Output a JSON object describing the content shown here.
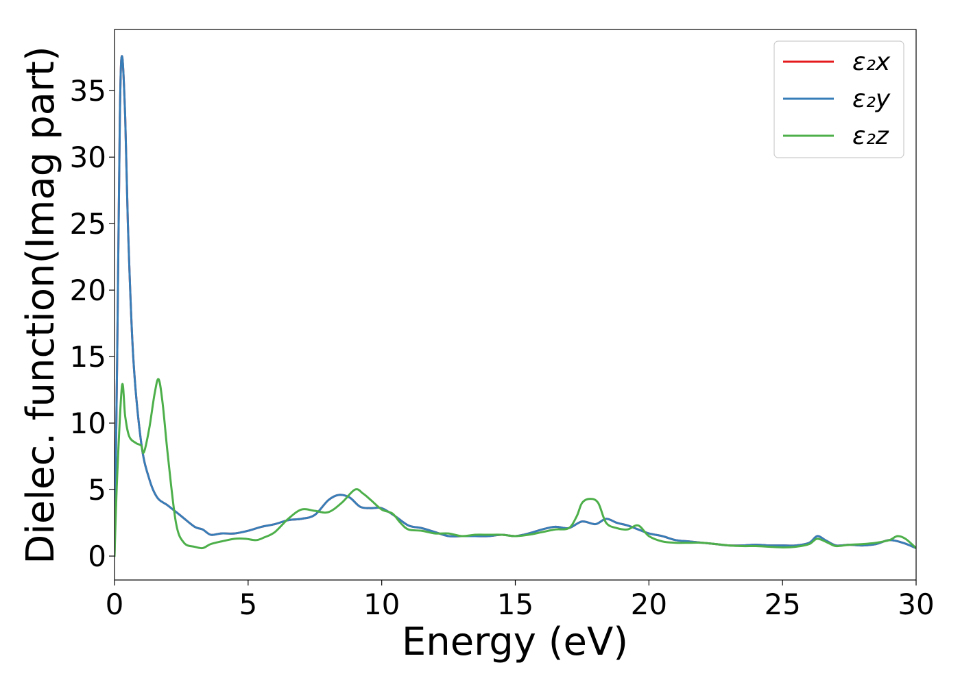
{
  "chart_data": {
    "type": "line",
    "title": "",
    "xlabel": "Energy (eV)",
    "ylabel": "Dielec. function(Imag part)",
    "xlim": [
      0,
      30
    ],
    "ylim": [
      -1.8,
      39.6
    ],
    "xticks": [
      0,
      5,
      10,
      15,
      20,
      25,
      30
    ],
    "xtick_labels": [
      "0",
      "5",
      "10",
      "15",
      "20",
      "25",
      "30"
    ],
    "yticks": [
      0,
      5,
      10,
      15,
      20,
      25,
      30,
      35
    ],
    "ytick_labels": [
      "0",
      "5",
      "10",
      "15",
      "20",
      "25",
      "30",
      "35"
    ],
    "grid": false,
    "legend_position": "top-right",
    "series": [
      {
        "name": "ε₂x",
        "color": "#e41a1c",
        "x": [
          0,
          0.1,
          0.2,
          0.28,
          0.4,
          0.5,
          0.7,
          1.0,
          1.3,
          1.6,
          2.0,
          2.5,
          3.0,
          3.3,
          3.6,
          4.0,
          4.5,
          5.0,
          5.5,
          6.0,
          6.5,
          7.0,
          7.5,
          8.0,
          8.4,
          8.8,
          9.2,
          9.6,
          10.0,
          10.5,
          11.0,
          11.5,
          12.0,
          12.5,
          13.0,
          13.5,
          14.0,
          14.5,
          15.0,
          15.5,
          16.0,
          16.5,
          17.0,
          17.5,
          18.0,
          18.4,
          18.8,
          19.2,
          19.6,
          20.0,
          20.5,
          21.0,
          21.5,
          22.0,
          22.5,
          23.0,
          23.5,
          24.0,
          24.5,
          25.0,
          25.5,
          26.0,
          26.3,
          26.6,
          27.0,
          27.5,
          28.0,
          28.5,
          29.0,
          29.5,
          30.0
        ],
        "values": [
          0,
          15,
          33,
          37.6,
          33,
          25,
          15,
          8.5,
          5.8,
          4.4,
          3.8,
          3.0,
          2.2,
          2.0,
          1.6,
          1.7,
          1.7,
          1.9,
          2.2,
          2.4,
          2.7,
          2.8,
          3.1,
          4.2,
          4.6,
          4.4,
          3.7,
          3.6,
          3.6,
          3.0,
          2.3,
          2.1,
          1.8,
          1.5,
          1.5,
          1.5,
          1.5,
          1.6,
          1.5,
          1.7,
          2.0,
          2.2,
          2.1,
          2.6,
          2.4,
          2.8,
          2.5,
          2.3,
          2.0,
          1.7,
          1.5,
          1.2,
          1.1,
          1.0,
          0.9,
          0.8,
          0.8,
          0.85,
          0.8,
          0.8,
          0.8,
          1.0,
          1.5,
          1.2,
          0.8,
          0.85,
          0.8,
          0.9,
          1.2,
          1.0,
          0.6
        ]
      },
      {
        "name": "ε₂y",
        "color": "#377eb8",
        "x": [
          0,
          0.1,
          0.2,
          0.28,
          0.4,
          0.5,
          0.7,
          1.0,
          1.3,
          1.6,
          2.0,
          2.5,
          3.0,
          3.3,
          3.6,
          4.0,
          4.5,
          5.0,
          5.5,
          6.0,
          6.5,
          7.0,
          7.5,
          8.0,
          8.4,
          8.8,
          9.2,
          9.6,
          10.0,
          10.5,
          11.0,
          11.5,
          12.0,
          12.5,
          13.0,
          13.5,
          14.0,
          14.5,
          15.0,
          15.5,
          16.0,
          16.5,
          17.0,
          17.5,
          18.0,
          18.4,
          18.8,
          19.2,
          19.6,
          20.0,
          20.5,
          21.0,
          21.5,
          22.0,
          22.5,
          23.0,
          23.5,
          24.0,
          24.5,
          25.0,
          25.5,
          26.0,
          26.3,
          26.6,
          27.0,
          27.5,
          28.0,
          28.5,
          29.0,
          29.5,
          30.0
        ],
        "values": [
          0,
          15,
          33,
          37.6,
          33,
          25,
          15,
          8.5,
          5.8,
          4.4,
          3.8,
          3.0,
          2.2,
          2.0,
          1.6,
          1.7,
          1.7,
          1.9,
          2.2,
          2.4,
          2.7,
          2.8,
          3.1,
          4.2,
          4.6,
          4.4,
          3.7,
          3.6,
          3.6,
          3.0,
          2.3,
          2.1,
          1.8,
          1.5,
          1.5,
          1.5,
          1.5,
          1.6,
          1.5,
          1.7,
          2.0,
          2.2,
          2.1,
          2.6,
          2.4,
          2.8,
          2.5,
          2.3,
          2.0,
          1.7,
          1.5,
          1.2,
          1.1,
          1.0,
          0.9,
          0.8,
          0.8,
          0.85,
          0.8,
          0.8,
          0.8,
          1.0,
          1.5,
          1.2,
          0.8,
          0.85,
          0.8,
          0.9,
          1.2,
          1.0,
          0.6
        ]
      },
      {
        "name": "ε₂z",
        "color": "#4daf4a",
        "x": [
          0,
          0.1,
          0.28,
          0.4,
          0.55,
          0.8,
          1.0,
          1.1,
          1.3,
          1.5,
          1.65,
          1.8,
          2.0,
          2.3,
          2.6,
          3.0,
          3.3,
          3.6,
          4.0,
          4.5,
          4.9,
          5.3,
          5.6,
          6.0,
          6.5,
          7.0,
          7.5,
          8.0,
          8.5,
          9.0,
          9.3,
          9.6,
          10.0,
          10.4,
          10.7,
          11.0,
          11.5,
          12.0,
          12.5,
          13.0,
          13.5,
          14.0,
          14.5,
          15.0,
          15.5,
          16.0,
          16.5,
          17.0,
          17.3,
          17.5,
          17.8,
          18.1,
          18.4,
          18.8,
          19.2,
          19.6,
          20.0,
          20.5,
          21.0,
          21.5,
          22.0,
          22.5,
          23.0,
          23.5,
          24.0,
          24.5,
          25.0,
          25.5,
          26.0,
          26.3,
          26.7,
          27.0,
          27.5,
          28.0,
          28.5,
          29.0,
          29.3,
          29.6,
          30.0
        ],
        "values": [
          0,
          6,
          12.8,
          10.5,
          9.0,
          8.5,
          8.3,
          7.8,
          9.6,
          12.2,
          13.3,
          11.5,
          7.5,
          2.5,
          1.0,
          0.7,
          0.6,
          0.9,
          1.1,
          1.3,
          1.3,
          1.2,
          1.4,
          1.8,
          2.8,
          3.5,
          3.4,
          3.3,
          4.0,
          5.0,
          4.7,
          4.2,
          3.5,
          3.2,
          2.5,
          2.0,
          1.9,
          1.7,
          1.7,
          1.5,
          1.6,
          1.6,
          1.6,
          1.5,
          1.6,
          1.8,
          2.0,
          2.1,
          3.0,
          4.0,
          4.3,
          4.0,
          2.5,
          2.1,
          2.0,
          2.3,
          1.5,
          1.1,
          1.0,
          1.0,
          1.0,
          0.9,
          0.8,
          0.75,
          0.75,
          0.7,
          0.65,
          0.7,
          0.9,
          1.3,
          1.0,
          0.75,
          0.85,
          0.9,
          1.0,
          1.2,
          1.5,
          1.3,
          0.6
        ]
      }
    ]
  }
}
